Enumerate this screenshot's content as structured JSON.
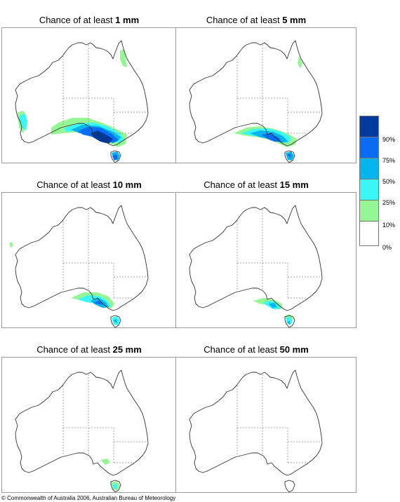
{
  "panels": [
    {
      "prefix": "Chance of at least ",
      "amount": "1 mm"
    },
    {
      "prefix": "Chance of at least ",
      "amount": "5 mm"
    },
    {
      "prefix": "Chance of at least ",
      "amount": "10 mm"
    },
    {
      "prefix": "Chance of at least ",
      "amount": "15 mm"
    },
    {
      "prefix": "Chance of at least ",
      "amount": "25 mm"
    },
    {
      "prefix": "Chance of at least ",
      "amount": "50 mm"
    }
  ],
  "legend": {
    "labels": [
      "90%",
      "75%",
      "50%",
      "25%",
      "10%",
      "0%"
    ],
    "colors": [
      "#003a9e",
      "#0a6cf0",
      "#04b4ec",
      "#3cf6f6",
      "#96f696",
      "#ffffff"
    ]
  },
  "copyright": "© Commonwealth of Australia 2006, Australian Bureau of Meteorology"
}
